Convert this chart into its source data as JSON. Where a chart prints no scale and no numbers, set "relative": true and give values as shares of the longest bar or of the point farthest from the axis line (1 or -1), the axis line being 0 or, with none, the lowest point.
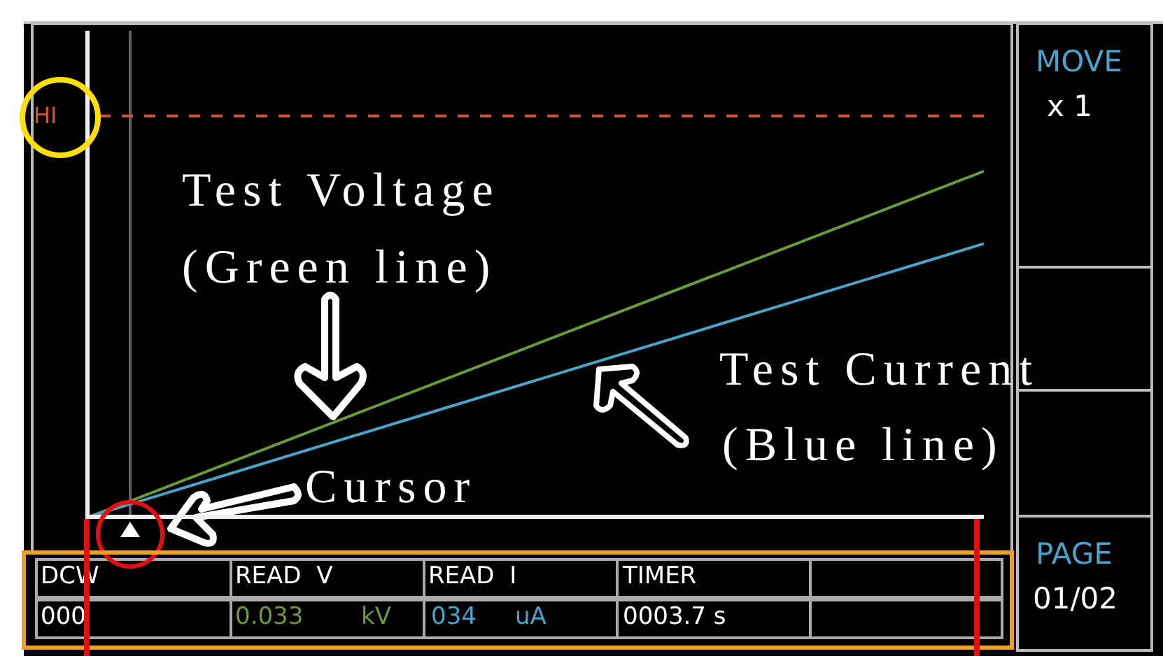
{
  "chart_data": {
    "type": "line",
    "relative": true,
    "categories": [
      null,
      null
    ],
    "series": [
      {
        "color": "#6a9a3a",
        "values": [
          0,
          1
        ]
      },
      {
        "color": "#4aa3c8",
        "values": [
          0,
          0.79
        ]
      }
    ],
    "ref_lines": [
      {
        "axis": "y",
        "value": 1.16,
        "label": "HI",
        "color": "#d9542c",
        "line_style": "dashed"
      }
    ],
    "annotations": [
      "Test Voltage",
      "(Green line)",
      "Test Current",
      "(Blue line)",
      "Cursor",
      "MOVE",
      "x 1",
      "PAGE",
      "01/02",
      "DCW",
      "READ  V",
      "READ  I",
      "TIMER",
      "000",
      "0.033",
      "kV",
      "034",
      "uA",
      "0003.7 s"
    ]
  }
}
